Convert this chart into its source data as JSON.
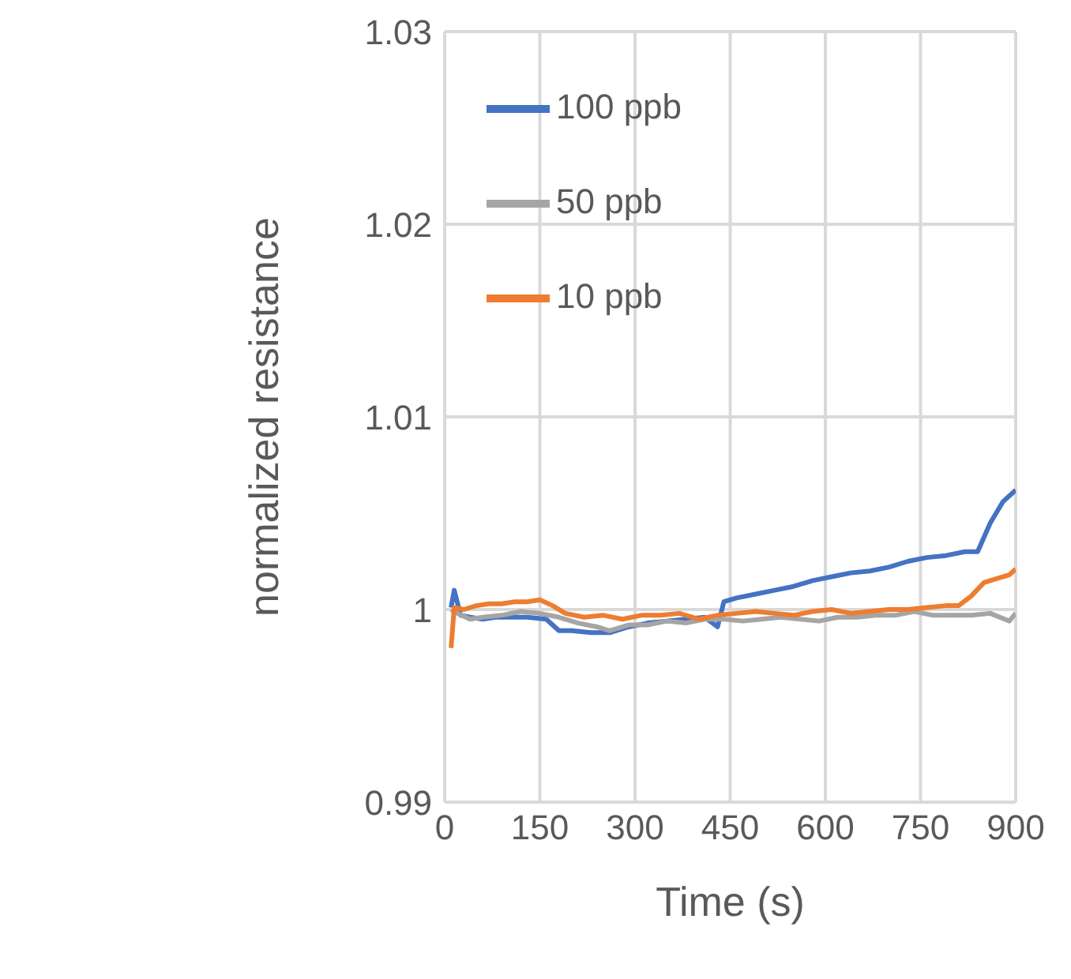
{
  "chart_data": {
    "type": "line",
    "xlabel": "Time (s)",
    "ylabel": "normalized resistance",
    "xlim": [
      0,
      900
    ],
    "xticks": [
      0,
      150,
      300,
      450,
      600,
      750,
      900
    ],
    "ylim": [
      0.99,
      1.03
    ],
    "yticks": [
      0.99,
      1,
      1.01,
      1.02,
      1.03
    ],
    "grid": true,
    "legend": "top left",
    "marker": "none",
    "line_style": "solid",
    "series": [
      {
        "name": "100 ppb",
        "color": "#4472c4",
        "x": [
          10,
          15,
          25,
          40,
          60,
          80,
          100,
          130,
          160,
          180,
          200,
          230,
          260,
          290,
          320,
          350,
          380,
          410,
          430,
          440,
          460,
          490,
          520,
          550,
          580,
          610,
          640,
          670,
          700,
          730,
          760,
          790,
          820,
          840,
          860,
          880,
          900
        ],
        "values": [
          1.0001,
          1.001,
          0.9997,
          0.9996,
          0.9995,
          0.9996,
          0.9996,
          0.9996,
          0.9995,
          0.9989,
          0.9989,
          0.9988,
          0.9988,
          0.9991,
          0.9993,
          0.9994,
          0.9995,
          0.9996,
          0.9991,
          1.0004,
          1.0006,
          1.0008,
          1.001,
          1.0012,
          1.0015,
          1.0017,
          1.0019,
          1.002,
          1.0022,
          1.0025,
          1.0027,
          1.0028,
          1.003,
          1.003,
          1.0045,
          1.0056,
          1.0062
        ]
      },
      {
        "name": "50 ppb",
        "color": "#a5a5a5",
        "x": [
          10,
          20,
          40,
          60,
          90,
          120,
          150,
          180,
          210,
          240,
          260,
          290,
          320,
          350,
          380,
          410,
          440,
          470,
          500,
          530,
          560,
          590,
          620,
          650,
          680,
          710,
          740,
          770,
          800,
          830,
          860,
          890,
          900
        ],
        "values": [
          1.0,
          0.9998,
          0.9995,
          0.9996,
          0.9997,
          0.9999,
          0.9998,
          0.9996,
          0.9993,
          0.9991,
          0.9989,
          0.9992,
          0.9992,
          0.9994,
          0.9993,
          0.9995,
          0.9995,
          0.9994,
          0.9995,
          0.9996,
          0.9995,
          0.9994,
          0.9996,
          0.9996,
          0.9997,
          0.9997,
          0.9999,
          0.9997,
          0.9997,
          0.9997,
          0.9998,
          0.9994,
          0.9998
        ]
      },
      {
        "name": "10 ppb",
        "color": "#ed7d31",
        "x": [
          10,
          15,
          30,
          50,
          70,
          90,
          110,
          130,
          150,
          170,
          190,
          220,
          250,
          280,
          310,
          340,
          370,
          400,
          430,
          460,
          490,
          520,
          550,
          580,
          610,
          640,
          670,
          700,
          730,
          760,
          790,
          810,
          830,
          850,
          870,
          890,
          900
        ],
        "values": [
          0.998,
          1.0001,
          1.0,
          1.0002,
          1.0003,
          1.0003,
          1.0004,
          1.0004,
          1.0005,
          1.0002,
          0.9998,
          0.9996,
          0.9997,
          0.9995,
          0.9997,
          0.9997,
          0.9998,
          0.9995,
          0.9997,
          0.9998,
          0.9999,
          0.9998,
          0.9997,
          0.9999,
          1.0,
          0.9998,
          0.9999,
          1.0,
          1.0,
          1.0001,
          1.0002,
          1.0002,
          1.0007,
          1.0014,
          1.0016,
          1.0018,
          1.0021
        ]
      }
    ]
  }
}
